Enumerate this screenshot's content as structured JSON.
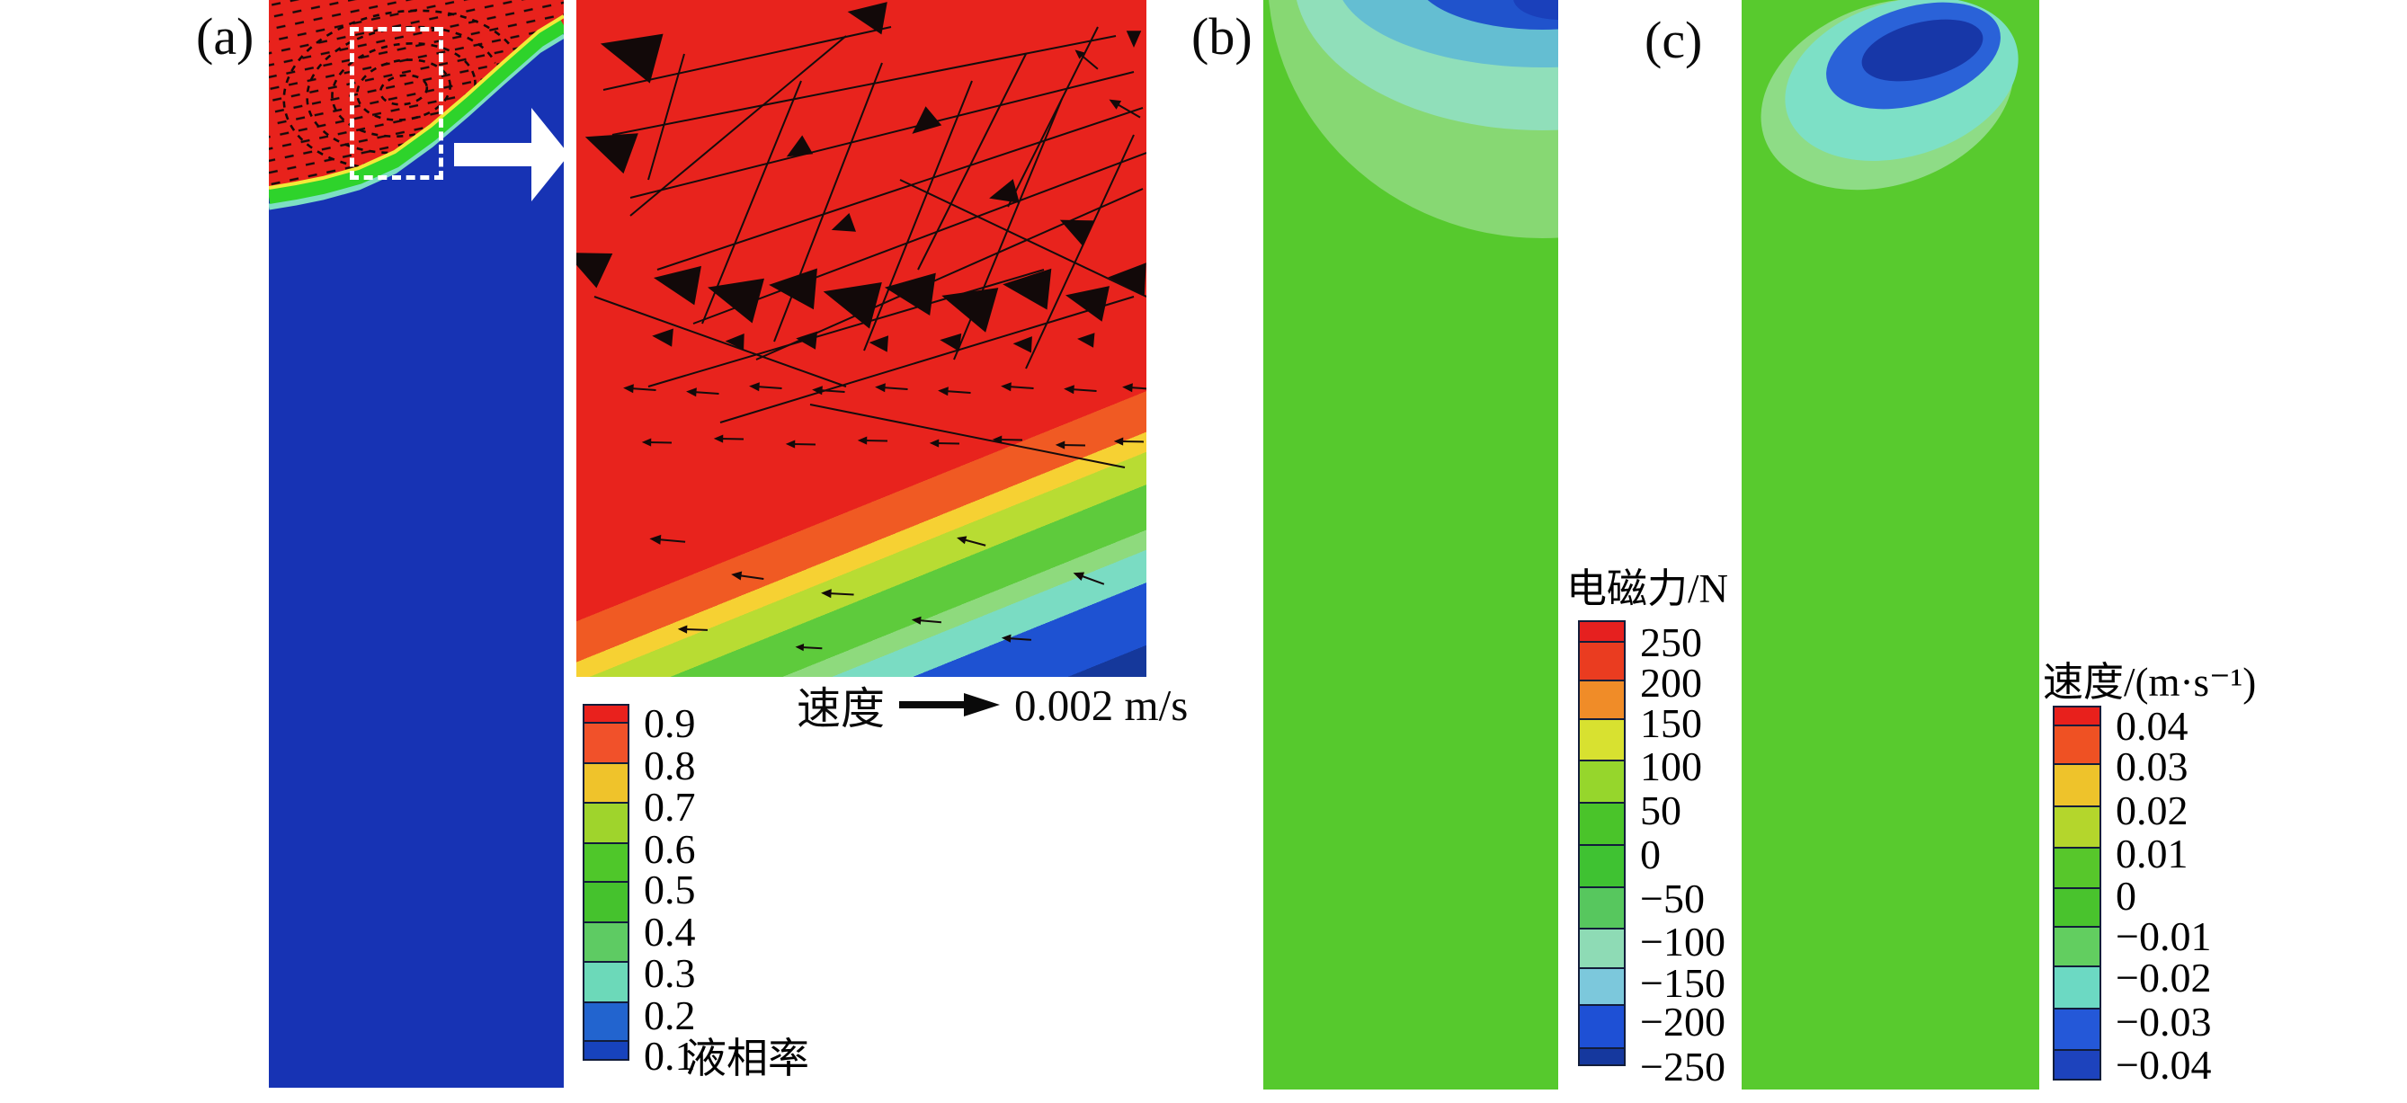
{
  "figure": {
    "panels": [
      {
        "label": "(a)"
      },
      {
        "label": "(b)"
      },
      {
        "label": "(c)"
      }
    ]
  },
  "panel_a": {
    "vector_legend": {
      "label": "速度",
      "value": "0.002 m/s"
    }
  },
  "colorbars": {
    "a": {
      "title": "液相率",
      "labels": [
        "0.9",
        "0.8",
        "0.7",
        "0.6",
        "0.5",
        "0.4",
        "0.3",
        "0.2",
        "0.1"
      ],
      "segments": [
        {
          "h": 22,
          "color": "#e9211d"
        },
        {
          "h": 47,
          "color": "#f1512a"
        },
        {
          "h": 46,
          "color": "#efc32b"
        },
        {
          "h": 47,
          "color": "#9fd42c"
        },
        {
          "h": 45,
          "color": "#4fc72a"
        },
        {
          "h": 47,
          "color": "#45c22d"
        },
        {
          "h": 46,
          "color": "#5ecb63"
        },
        {
          "h": 47,
          "color": "#6cd9b9"
        },
        {
          "h": 45,
          "color": "#2264cf"
        },
        {
          "h": 23,
          "color": "#1743bd"
        }
      ]
    },
    "b": {
      "title": "电磁力/N",
      "labels": [
        "250",
        "200",
        "150",
        "100",
        "50",
        "0",
        "−50",
        "−100",
        "−150",
        "−200",
        "−250"
      ],
      "segments": [
        {
          "h": 25,
          "color": "#e6201f"
        },
        {
          "h": 45,
          "color": "#ea3c20"
        },
        {
          "h": 45,
          "color": "#f08c28"
        },
        {
          "h": 48,
          "color": "#d8e130"
        },
        {
          "h": 49,
          "color": "#96d62c"
        },
        {
          "h": 49,
          "color": "#4ac42a"
        },
        {
          "h": 49,
          "color": "#3fc232"
        },
        {
          "h": 48,
          "color": "#57c75e"
        },
        {
          "h": 46,
          "color": "#8edbb5"
        },
        {
          "h": 43,
          "color": "#7cc8dc"
        },
        {
          "h": 50,
          "color": "#1e50d5"
        },
        {
          "h": 21,
          "color": "#15389e"
        }
      ]
    },
    "c": {
      "title": "速度/(m·s⁻¹)",
      "labels": [
        "0.04",
        "0.03",
        "0.02",
        "0.01",
        "0",
        "−0.01",
        "−0.02",
        "−0.03",
        "−0.04"
      ],
      "segments": [
        {
          "h": 23,
          "color": "#e8201c"
        },
        {
          "h": 45,
          "color": "#ef5123"
        },
        {
          "h": 49,
          "color": "#eec32b"
        },
        {
          "h": 48,
          "color": "#b4d62c"
        },
        {
          "h": 47,
          "color": "#57c72b"
        },
        {
          "h": 45,
          "color": "#49c32d"
        },
        {
          "h": 46,
          "color": "#62ce60"
        },
        {
          "h": 49,
          "color": "#6cd9c3"
        },
        {
          "h": 48,
          "color": "#2458d8"
        },
        {
          "h": 35,
          "color": "#1d43bd"
        }
      ]
    }
  },
  "chart_data": [
    {
      "type": "heatmap",
      "panel": "(a)",
      "title": "液相率 contour (liquid phase fraction) with velocity vectors and magnified inset",
      "legend_title": "液相率",
      "tick_labels": [
        0.9,
        0.8,
        0.7,
        0.6,
        0.5,
        0.4,
        0.3,
        0.2,
        0.1
      ],
      "palette_top_to_bottom": [
        "#e9211d",
        "#f1512a",
        "#efc32b",
        "#9fd42c",
        "#4fc72a",
        "#45c22d",
        "#5ecb63",
        "#6cd9b9",
        "#2264cf",
        "#1743bd"
      ],
      "vector_reference": {
        "label": "速度",
        "value": "0.002 m/s"
      },
      "content": "Upper-left region liquid (红色, 液相率≈1) with a circulating vortex of black velocity vectors inside a white dashed inspection box; curved green interface band falling from upper-right to left; lower region blue (液相率≈0). A white arrow points to a magnified inset of the dashed-box region showing the vector field and the layered interface bands in its lower-right corner."
    },
    {
      "type": "heatmap",
      "panel": "(b)",
      "legend_title": "电磁力/N",
      "tick_values": [
        250,
        200,
        150,
        100,
        50,
        0,
        -50,
        -100,
        -150,
        -200,
        -250
      ],
      "palette_top_to_bottom": [
        "#e6201f",
        "#ea3c20",
        "#f08c28",
        "#d8e130",
        "#96d62c",
        "#4ac42a",
        "#3fc232",
        "#57c75e",
        "#8edbb5",
        "#7cc8dc",
        "#1e50d5",
        "#15389e"
      ],
      "content": "Column mostly ≈0 N (green); strongly negative electromagnetic force pocket (≈ −200 to −250 N, blue) cut off at the top-right corner, surrounded by concentric bands (sky blue ≈ −150, mint ≈ −100, pale green ≈ −50)."
    },
    {
      "type": "heatmap",
      "panel": "(c)",
      "legend_title": "速度/(m·s⁻¹)",
      "tick_values": [
        0.04,
        0.03,
        0.02,
        0.01,
        0,
        -0.01,
        -0.02,
        -0.03,
        -0.04
      ],
      "palette_top_to_bottom": [
        "#e8201c",
        "#ef5123",
        "#eec32b",
        "#b4d62c",
        "#57c72b",
        "#49c32d",
        "#62ce60",
        "#6cd9c3",
        "#2458d8",
        "#1d43bd"
      ],
      "content": "Column mostly ≈0 m/s (green); closed negative-velocity pocket near the top (navy core ≈ −0.04 m/s inside royal-blue ≈ −0.03 and turquoise ≈ −0.02 rings, tilted tear-drop shape)."
    }
  ]
}
